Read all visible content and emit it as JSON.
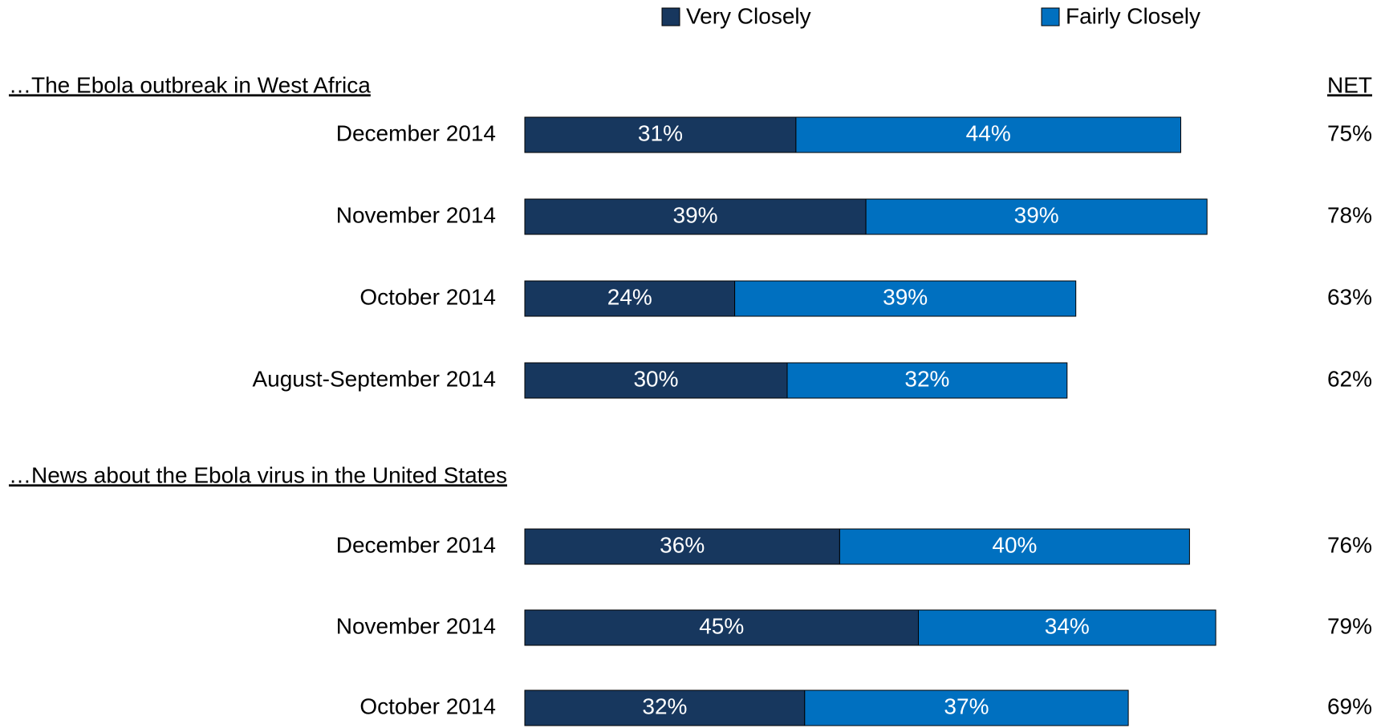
{
  "chart_data": {
    "type": "bar",
    "orientation": "horizontal",
    "stacked": true,
    "series": [
      {
        "name": "Very Closely",
        "color": "#17375e"
      },
      {
        "name": "Fairly Closely",
        "color": "#0070c0"
      }
    ],
    "net_title": "NET",
    "groups": [
      {
        "title": "…The Ebola outbreak in West Africa",
        "categories": [
          "December 2014",
          "November 2014",
          "October 2014",
          "August-September 2014"
        ],
        "series": [
          {
            "values": [
              31,
              39,
              24,
              30
            ],
            "value_labels": [
              "31%",
              "39%",
              "24%",
              "30%"
            ]
          },
          {
            "values": [
              44,
              39,
              39,
              32
            ],
            "value_labels": [
              "44%",
              "39%",
              "39%",
              "32%"
            ]
          }
        ],
        "net": {
          "values": [
            75,
            78,
            63,
            62
          ],
          "value_labels": [
            "75%",
            "78%",
            "63%",
            "62%"
          ]
        }
      },
      {
        "title": "…News about the Ebola virus in the United States",
        "categories": [
          "December 2014",
          "November 2014",
          "October 2014"
        ],
        "series": [
          {
            "values": [
              36,
              45,
              32
            ],
            "value_labels": [
              "36%",
              "45%",
              "32%"
            ]
          },
          {
            "values": [
              40,
              34,
              37
            ],
            "value_labels": [
              "40%",
              "34%",
              "37%"
            ]
          }
        ],
        "net": {
          "values": [
            76,
            79,
            69
          ],
          "value_labels": [
            "76%",
            "79%",
            "69%"
          ]
        }
      }
    ]
  }
}
